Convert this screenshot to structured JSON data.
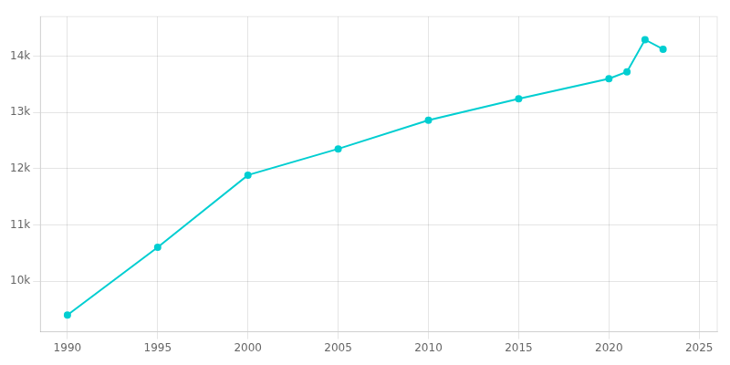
{
  "chart_data": {
    "type": "line",
    "x": [
      1990,
      1995,
      2000,
      2005,
      2010,
      2015,
      2020,
      2021,
      2022,
      2023
    ],
    "values": [
      9397,
      10600,
      11884,
      12350,
      12858,
      13240,
      13597,
      13720,
      14290,
      14120
    ],
    "color": "#00CED1",
    "marker": "circle",
    "xlim": [
      1988.5,
      2026
    ],
    "xticks": [
      1990,
      1995,
      2000,
      2005,
      2010,
      2015,
      2020,
      2025
    ],
    "ylim": [
      9100,
      14700
    ],
    "yticks": [
      {
        "value": 10000,
        "label": "10k"
      },
      {
        "value": 11000,
        "label": "11k"
      },
      {
        "value": 12000,
        "label": "12k"
      },
      {
        "value": 13000,
        "label": "13k"
      },
      {
        "value": 14000,
        "label": "14k"
      }
    ],
    "grid": true
  }
}
